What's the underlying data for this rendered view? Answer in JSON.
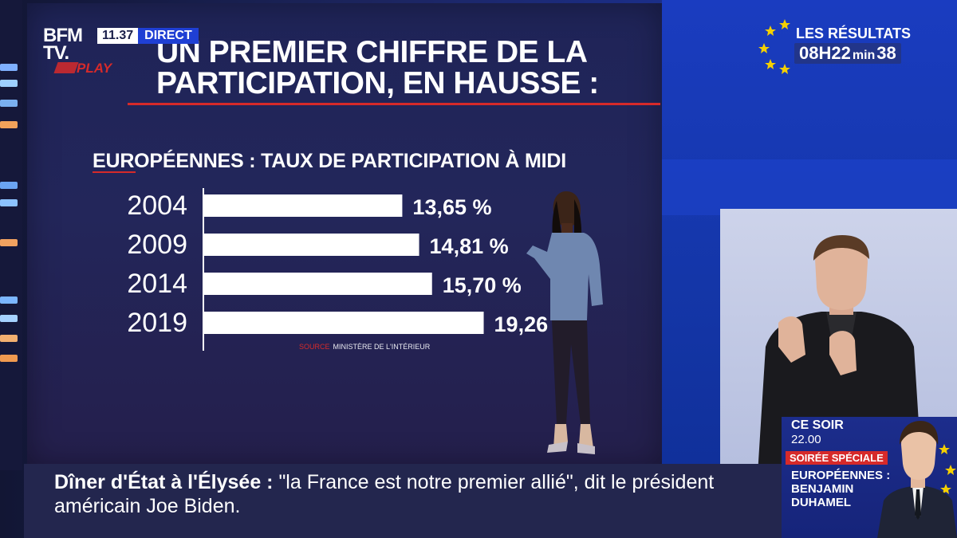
{
  "channel": {
    "logo_line1": "BFM",
    "logo_line2": "TV.",
    "replay_label": "PLAY",
    "live_time": "11.37",
    "live_label": "DIRECT"
  },
  "screen": {
    "headline_line1": "UN PREMIER CHIFFRE DE LA",
    "headline_line2": "PARTICIPATION, EN HAUSSE :",
    "source_label": "SOURCE",
    "source_value": "MINISTÈRE DE L'INTÉRIEUR"
  },
  "chart_data": {
    "type": "bar",
    "orientation": "horizontal",
    "title": "EUROPÉENNES : TAUX DE PARTICIPATION À MIDI",
    "categories": [
      "2004",
      "2009",
      "2014",
      "2019"
    ],
    "values": [
      13.65,
      14.81,
      15.7,
      19.26
    ],
    "value_labels": [
      "13,65 %",
      "14,81 %",
      "15,70 %",
      "19,26 %"
    ],
    "xlim": [
      0,
      25
    ],
    "grid": false,
    "bar_color": "#ffffff"
  },
  "countdown": {
    "label": "LES RÉSULTATS",
    "hours": "08H22",
    "min_label": "min",
    "seconds": "38"
  },
  "ticker": {
    "headline": "Dîner d'État à l'Élysée",
    "separator": " : ",
    "body": "\"la France est notre premier allié\", dit le président américain Joe Biden."
  },
  "promo": {
    "when": "CE SOIR",
    "time": "22.00",
    "badge": "SOIRÉE SPÉCIALE",
    "show_line1": "EUROPÉENNES :",
    "show_line2": "BENJAMIN",
    "show_line3": "DUHAMEL"
  },
  "colors": {
    "accent_red": "#d62a2a",
    "brand_blue": "#1f3fd4",
    "ticker_bg": "#23264e"
  },
  "icons": [
    "eu-stars-icon"
  ]
}
